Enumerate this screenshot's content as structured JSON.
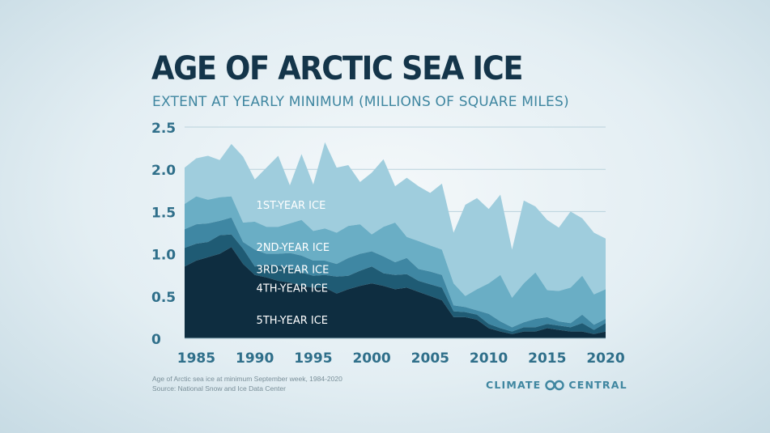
{
  "title": "AGE OF ARCTIC SEA ICE",
  "subtitle": "EXTENT AT YEARLY MINIMUM (MILLIONS OF SQUARE MILES)",
  "footnote": {
    "line1": "Age of Arctic sea ice at minimum September week, 1984-2020",
    "line2": "Source: National Snow and Ice Data Center"
  },
  "brand": {
    "left": "CLIMATE",
    "right": "CENTRAL",
    "icon": "infinity-loop-icon"
  },
  "colors": {
    "title": "#14354a",
    "accent": "#3f86a0",
    "axis_labels": "#2f6f8a",
    "series": [
      "#0e2d40",
      "#1f5b74",
      "#3f87a3",
      "#6aaec5",
      "#9fcddd"
    ]
  },
  "chart_data": {
    "type": "area",
    "stacked": true,
    "x": [
      1984,
      1985,
      1986,
      1987,
      1988,
      1989,
      1990,
      1991,
      1992,
      1993,
      1994,
      1995,
      1996,
      1997,
      1998,
      1999,
      2000,
      2001,
      2002,
      2003,
      2004,
      2005,
      2006,
      2007,
      2008,
      2009,
      2010,
      2011,
      2012,
      2013,
      2014,
      2015,
      2016,
      2017,
      2018,
      2019,
      2020
    ],
    "xticks": [
      "1985",
      "1990",
      "1995",
      "2000",
      "2005",
      "2010",
      "2015",
      "2020"
    ],
    "xtick_values": [
      1985,
      1990,
      1995,
      2000,
      2005,
      2010,
      2015,
      2020
    ],
    "yticks": [
      "0",
      "0.5",
      "1.0",
      "1.5",
      "2.0",
      "2.5"
    ],
    "ytick_values": [
      0,
      0.5,
      1.0,
      1.5,
      2.0,
      2.5
    ],
    "ylim": [
      0,
      2.5
    ],
    "grid": true,
    "series": [
      {
        "name": "5TH-YEAR ICE",
        "values": [
          0.85,
          0.92,
          0.96,
          1.0,
          1.08,
          0.88,
          0.75,
          0.72,
          0.68,
          0.66,
          0.62,
          0.6,
          0.6,
          0.53,
          0.58,
          0.62,
          0.65,
          0.62,
          0.58,
          0.6,
          0.55,
          0.5,
          0.45,
          0.25,
          0.25,
          0.22,
          0.12,
          0.08,
          0.05,
          0.08,
          0.08,
          0.12,
          0.1,
          0.08,
          0.08,
          0.05,
          0.08
        ]
      },
      {
        "name": "4TH-YEAR ICE",
        "values": [
          0.22,
          0.2,
          0.18,
          0.22,
          0.15,
          0.18,
          0.1,
          0.15,
          0.18,
          0.18,
          0.16,
          0.14,
          0.15,
          0.2,
          0.16,
          0.18,
          0.2,
          0.15,
          0.17,
          0.16,
          0.13,
          0.14,
          0.15,
          0.07,
          0.06,
          0.06,
          0.05,
          0.04,
          0.03,
          0.05,
          0.05,
          0.05,
          0.05,
          0.05,
          0.1,
          0.05,
          0.1
        ]
      },
      {
        "name": "3RD-YEAR ICE",
        "values": [
          0.22,
          0.23,
          0.22,
          0.17,
          0.2,
          0.08,
          0.2,
          0.13,
          0.14,
          0.17,
          0.2,
          0.18,
          0.17,
          0.15,
          0.21,
          0.2,
          0.18,
          0.2,
          0.15,
          0.19,
          0.14,
          0.15,
          0.15,
          0.07,
          0.06,
          0.05,
          0.12,
          0.08,
          0.05,
          0.06,
          0.1,
          0.08,
          0.05,
          0.05,
          0.1,
          0.06,
          0.05
        ]
      },
      {
        "name": "2ND-YEAR ICE",
        "values": [
          0.3,
          0.33,
          0.28,
          0.28,
          0.25,
          0.23,
          0.33,
          0.32,
          0.32,
          0.35,
          0.42,
          0.35,
          0.38,
          0.37,
          0.38,
          0.35,
          0.2,
          0.35,
          0.47,
          0.25,
          0.33,
          0.31,
          0.3,
          0.26,
          0.13,
          0.25,
          0.36,
          0.55,
          0.35,
          0.46,
          0.55,
          0.32,
          0.36,
          0.42,
          0.46,
          0.36,
          0.35
        ]
      },
      {
        "name": "1ST-YEAR ICE",
        "values": [
          0.43,
          0.45,
          0.52,
          0.44,
          0.62,
          0.78,
          0.5,
          0.7,
          0.84,
          0.45,
          0.78,
          0.55,
          1.02,
          0.77,
          0.72,
          0.5,
          0.73,
          0.8,
          0.43,
          0.7,
          0.65,
          0.62,
          0.78,
          0.6,
          1.08,
          1.08,
          0.88,
          0.95,
          0.57,
          0.98,
          0.78,
          0.83,
          0.75,
          0.9,
          0.68,
          0.73,
          0.6
        ]
      }
    ]
  }
}
